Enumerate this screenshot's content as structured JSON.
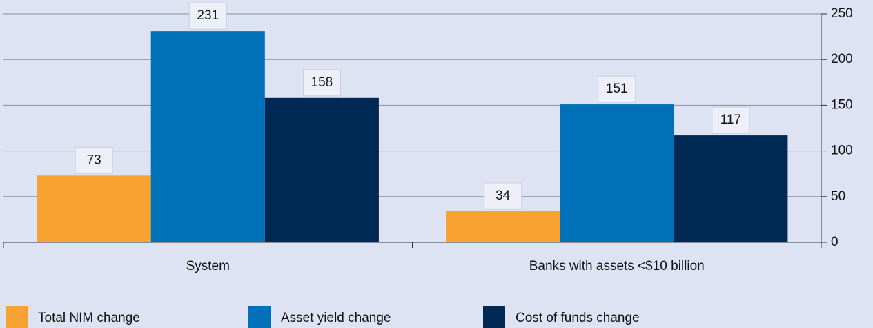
{
  "chart_data": {
    "type": "bar",
    "categories": [
      "System",
      "Banks with assets <$10 billion"
    ],
    "series": [
      {
        "name": "Total NIM change",
        "color": "#f7a231",
        "values": [
          73,
          34
        ]
      },
      {
        "name": "Asset yield change",
        "color": "#0070b8",
        "values": [
          231,
          151
        ]
      },
      {
        "name": "Cost of funds change",
        "color": "#002855",
        "values": [
          158,
          117
        ]
      }
    ],
    "ylim": [
      0,
      250
    ],
    "yticks": [
      0,
      50,
      100,
      150,
      200,
      250
    ],
    "grid": true,
    "legend": "bottom",
    "value_labels_shown": true
  }
}
